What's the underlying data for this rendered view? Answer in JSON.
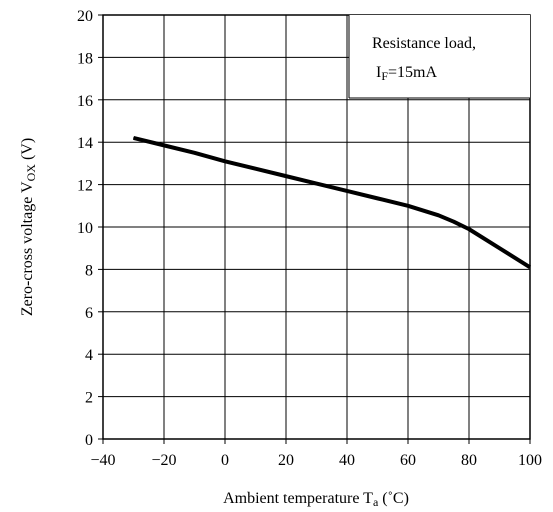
{
  "chart_data": {
    "type": "line",
    "xlabel": {
      "main": "Ambient temperature T",
      "sub": "a",
      "unit": " (˚C)"
    },
    "ylabel": {
      "main": "Zero-cross voltage V",
      "sub": "OX",
      "unit": " (V)"
    },
    "xlim": [
      -40,
      100
    ],
    "ylim": [
      0,
      20
    ],
    "x_ticks": [
      "−40",
      "−20",
      "0",
      "20",
      "40",
      "60",
      "80",
      "100"
    ],
    "y_ticks": [
      "0",
      "2",
      "4",
      "6",
      "8",
      "10",
      "12",
      "14",
      "16",
      "18",
      "20"
    ],
    "grid": true,
    "annotation": {
      "line1": "Resistance load,",
      "line2_main": "I",
      "line2_sub": "F",
      "line2_rest": "=15mA"
    },
    "series": [
      {
        "x": [
          -30,
          -20,
          -10,
          0,
          10,
          20,
          30,
          40,
          50,
          60,
          70,
          75,
          80,
          90,
          100
        ],
        "y": [
          14.2,
          13.85,
          13.5,
          13.1,
          12.75,
          12.4,
          12.05,
          11.7,
          11.35,
          11.0,
          10.55,
          10.25,
          9.9,
          9.0,
          8.1
        ]
      }
    ],
    "color": "#000000"
  }
}
